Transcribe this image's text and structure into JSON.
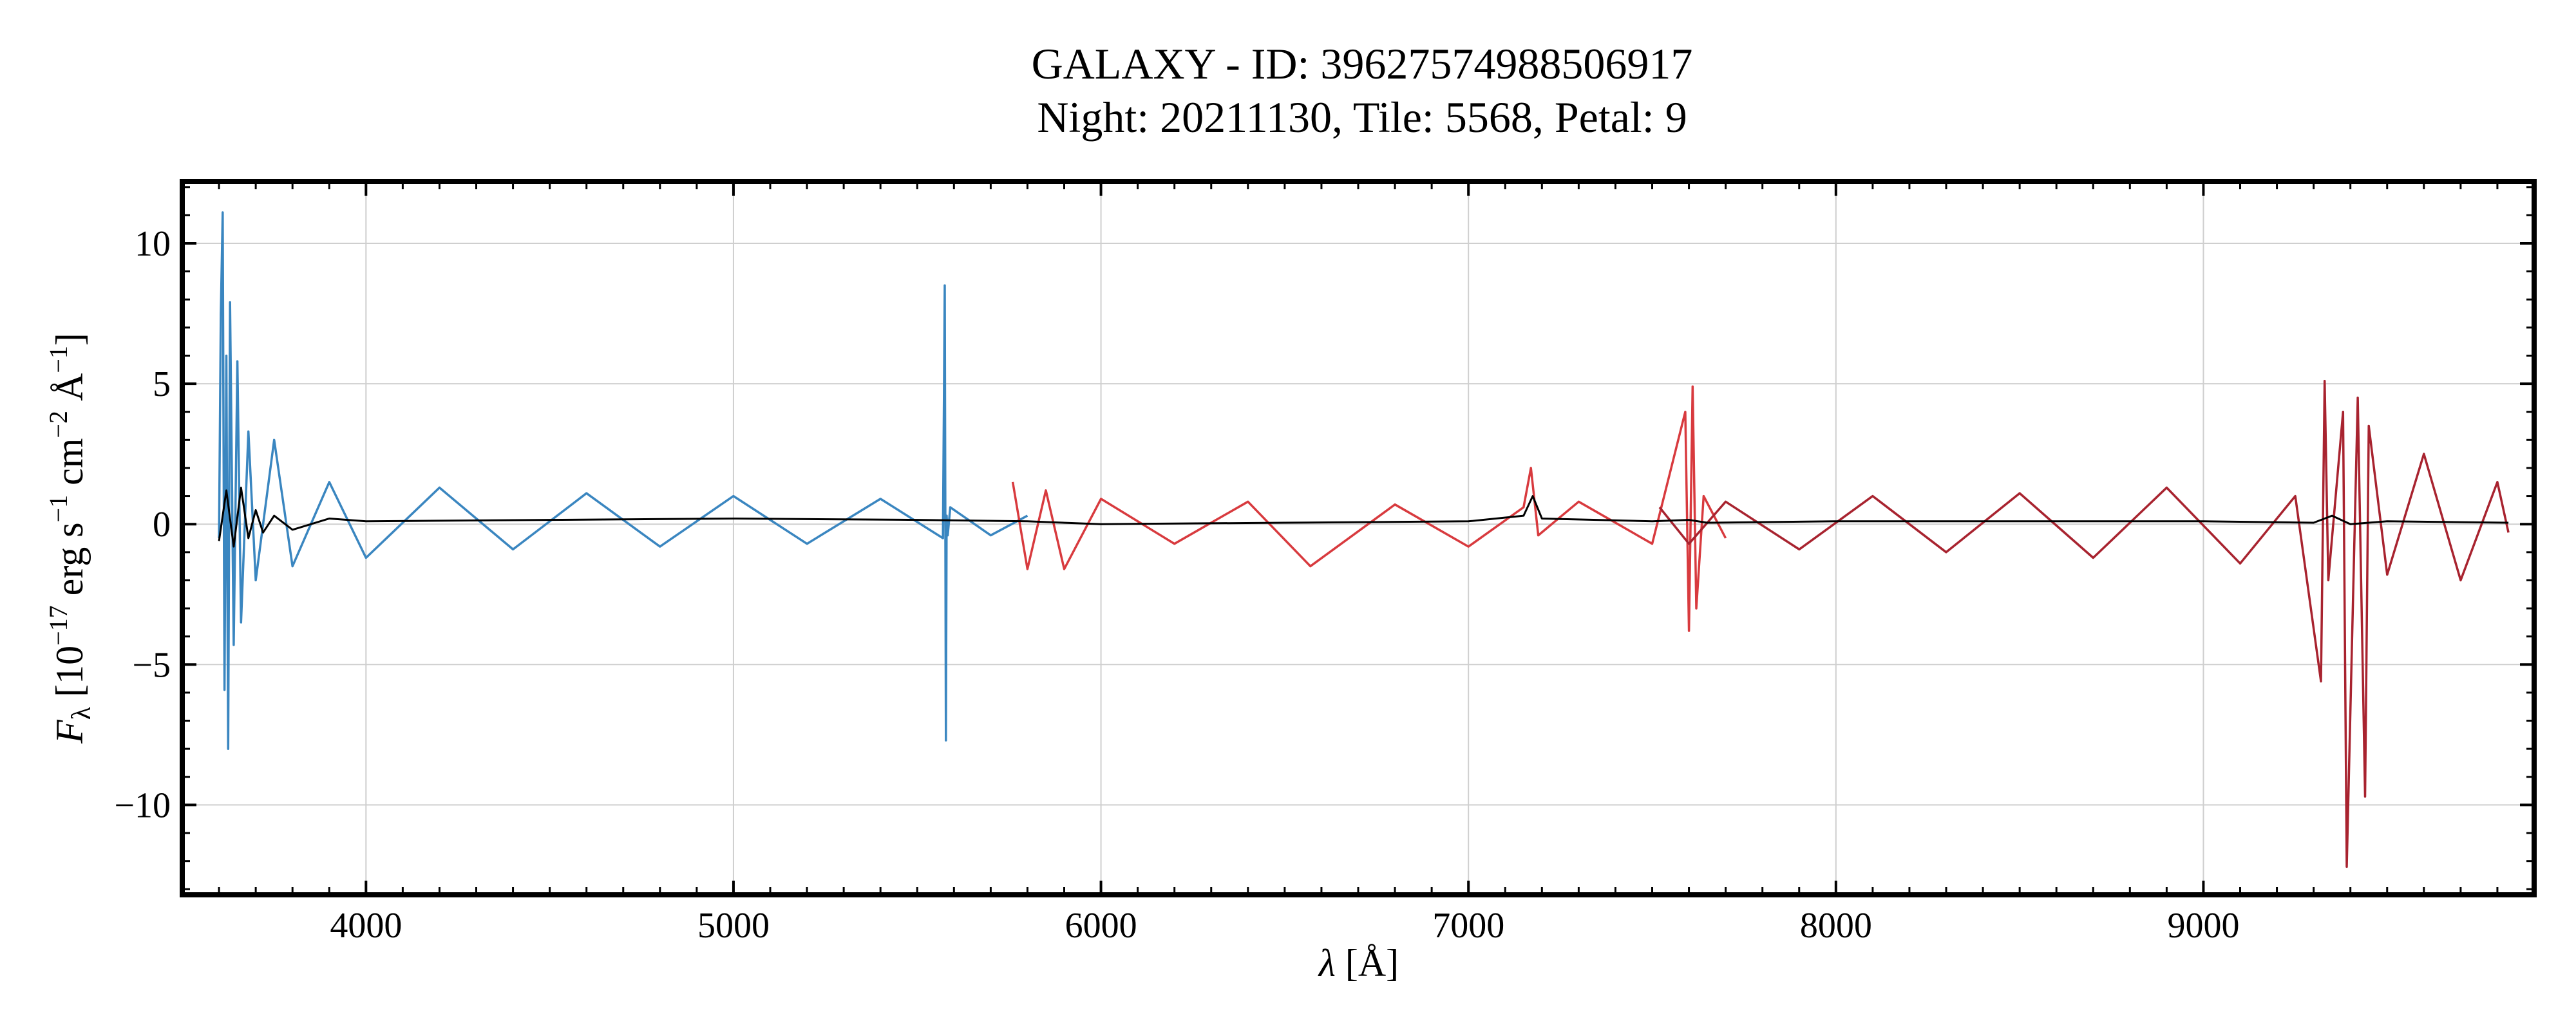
{
  "chart_data": {
    "type": "line",
    "title": "GALAXY - ID: 39627574988506917",
    "subtitle": "Night: 20211130, Tile: 5568, Petal: 9",
    "xlabel": "λ [Å]",
    "ylabel": "F_λ [10^−17 erg s^−1 cm^−2 Å^−1]",
    "xlim": [
      3500,
      9900
    ],
    "ylim": [
      -13.2,
      12.2
    ],
    "x_ticks": [
      4000,
      5000,
      6000,
      7000,
      8000,
      9000
    ],
    "x_tick_labels": [
      "4000",
      "5000",
      "6000",
      "7000",
      "8000",
      "9000"
    ],
    "y_ticks": [
      -10,
      -5,
      0,
      5,
      10
    ],
    "y_tick_labels": [
      "−10",
      "−5",
      "0",
      "5",
      "10"
    ],
    "grid": true,
    "series": [
      {
        "name": "",
        "color": "#3a86c0",
        "x": [
          3600,
          3605,
          3610,
          3615,
          3620,
          3625,
          3630,
          3640,
          3650,
          3660,
          3680,
          3700,
          3750,
          3800,
          3900,
          4000,
          4200,
          4400,
          4600,
          4800,
          5000,
          5200,
          5400,
          5570,
          5575,
          5578,
          5580,
          5583,
          5590,
          5700,
          5800
        ],
        "y": [
          -0.5,
          7.5,
          11.1,
          -5.9,
          6.0,
          -8.0,
          7.9,
          -4.3,
          5.8,
          -3.5,
          3.3,
          -2.0,
          3.0,
          -1.5,
          1.5,
          -1.2,
          1.3,
          -0.9,
          1.1,
          -0.8,
          1.0,
          -0.7,
          0.9,
          -0.5,
          8.5,
          -7.7,
          0.3,
          -0.4,
          0.6,
          -0.4,
          0.3
        ]
      },
      {
        "name": "",
        "color": "#d83a3e",
        "x": [
          5760,
          5800,
          5850,
          5900,
          6000,
          6200,
          6400,
          6570,
          6800,
          7000,
          7150,
          7170,
          7190,
          7300,
          7500,
          7590,
          7600,
          7610,
          7620,
          7640,
          7700
        ],
        "y": [
          1.5,
          -1.6,
          1.2,
          -1.6,
          0.9,
          -0.7,
          0.8,
          -1.5,
          0.7,
          -0.8,
          0.6,
          2.0,
          -0.4,
          0.8,
          -0.7,
          4.0,
          -3.8,
          4.9,
          -3.0,
          1.0,
          -0.5
        ]
      },
      {
        "name": "",
        "color": "#a8232f",
        "x": [
          7520,
          7600,
          7700,
          7900,
          8100,
          8300,
          8500,
          8700,
          8900,
          9100,
          9250,
          9320,
          9330,
          9340,
          9380,
          9390,
          9420,
          9440,
          9450,
          9500,
          9600,
          9700,
          9800,
          9830
        ],
        "y": [
          0.6,
          -0.7,
          0.8,
          -0.9,
          1.0,
          -1.0,
          1.1,
          -1.2,
          1.3,
          -1.4,
          1.0,
          -5.6,
          5.1,
          -2.0,
          4.0,
          -12.2,
          4.5,
          -9.7,
          3.5,
          -1.8,
          2.5,
          -2.0,
          1.5,
          -0.3
        ]
      },
      {
        "name": "",
        "color": "#000000",
        "x": [
          3600,
          3620,
          3640,
          3660,
          3680,
          3700,
          3720,
          3750,
          3800,
          3900,
          4000,
          4500,
          5000,
          5500,
          5800,
          6000,
          6500,
          7000,
          7150,
          7175,
          7200,
          7500,
          7600,
          7650,
          8000,
          8500,
          9000,
          9300,
          9350,
          9400,
          9500,
          9830
        ],
        "y": [
          -0.6,
          1.2,
          -0.8,
          1.3,
          -0.5,
          0.5,
          -0.3,
          0.3,
          -0.2,
          0.2,
          0.1,
          0.15,
          0.2,
          0.15,
          0.1,
          0.0,
          0.05,
          0.1,
          0.3,
          1.0,
          0.2,
          0.1,
          0.15,
          0.05,
          0.1,
          0.1,
          0.1,
          0.05,
          0.3,
          0.0,
          0.1,
          0.05
        ]
      }
    ]
  }
}
